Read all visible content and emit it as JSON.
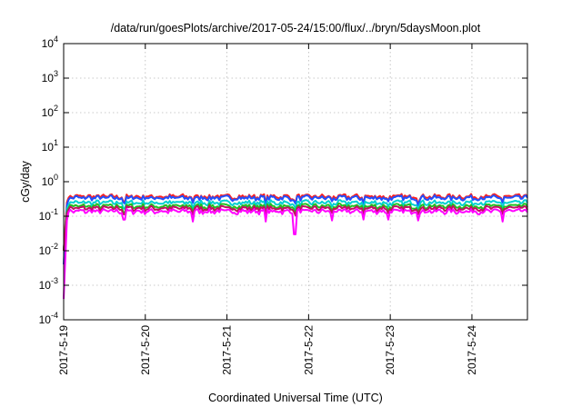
{
  "chart_data": {
    "type": "line",
    "title": "/data/run/goesPlots/archive/2017-05-24/15:00/flux/../bryn/5daysMoon.plot",
    "xlabel": "Coordinated Universal Time (UTC)",
    "ylabel": "cGy/day",
    "y_scale": "log",
    "ylim": [
      0.0001,
      10000
    ],
    "xlim_days": [
      0,
      5.68
    ],
    "grid": true,
    "legend": "none",
    "y_ticks": [
      {
        "base": "10",
        "exp": "-4",
        "value": 0.0001
      },
      {
        "base": "10",
        "exp": "-3",
        "value": 0.001
      },
      {
        "base": "10",
        "exp": "-2",
        "value": 0.01
      },
      {
        "base": "10",
        "exp": "-1",
        "value": 0.1
      },
      {
        "base": "10",
        "exp": "0",
        "value": 1
      },
      {
        "base": "10",
        "exp": "1",
        "value": 10
      },
      {
        "base": "10",
        "exp": "2",
        "value": 100
      },
      {
        "base": "10",
        "exp": "3",
        "value": 1000
      },
      {
        "base": "10",
        "exp": "4",
        "value": 10000
      }
    ],
    "x_ticks": [
      {
        "label": "2017-5-19",
        "day": 0
      },
      {
        "label": "2017-5-20",
        "day": 1
      },
      {
        "label": "2017-5-21",
        "day": 2
      },
      {
        "label": "2017-5-22",
        "day": 3
      },
      {
        "label": "2017-5-23",
        "day": 4
      },
      {
        "label": "2017-5-24",
        "day": 5
      }
    ],
    "series": [
      {
        "color": "#ff2020",
        "base": 0.36
      },
      {
        "color": "#2050ff",
        "base": 0.33
      },
      {
        "color": "#00d0d0",
        "base": 0.24
      },
      {
        "color": "#20c020",
        "base": 0.19
      },
      {
        "color": "#c01060",
        "base": 0.165
      },
      {
        "color": "#ff00ff",
        "base": 0.135
      }
    ],
    "dips": [
      {
        "day": 0.74,
        "value": 0.08
      },
      {
        "day": 1.58,
        "value": 0.07
      },
      {
        "day": 2.47,
        "value": 0.07
      },
      {
        "day": 2.83,
        "value": 0.03
      },
      {
        "day": 3.28,
        "value": 0.075
      },
      {
        "day": 3.68,
        "value": 0.08
      },
      {
        "day": 3.97,
        "value": 0.08
      },
      {
        "day": 4.34,
        "value": 0.075
      },
      {
        "day": 5.37,
        "value": 0.07
      }
    ],
    "start_spike": {
      "min": 0.0004,
      "start": 0.01
    }
  }
}
